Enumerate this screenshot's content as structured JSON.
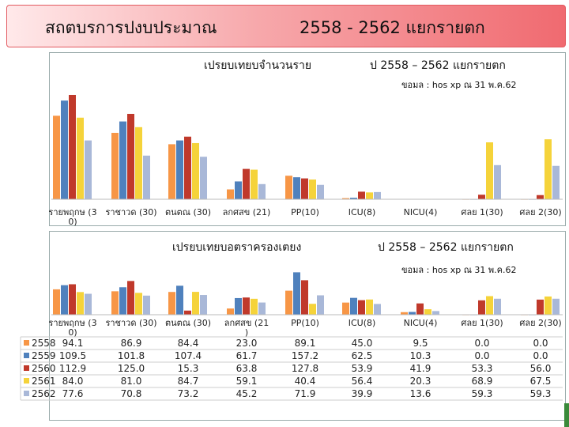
{
  "header": {
    "title_left": "สถตบรการปงบประมาณ",
    "title_right": "2558 - 2562 แยกรายตก"
  },
  "chart1": {
    "title_left": "เปรยบเทยบจำนวนราย",
    "title_right": "ป 2558 – 2562 แยกรายตก",
    "source": "ขอมล : hos xp ณ 31 พ.ค.62"
  },
  "chart2": {
    "title_left": "เปรยบเทยบอตราครองเตยง",
    "title_right": "ป 2558 – 2562 แยกรายตก",
    "source": "ขอมล : hos xp ณ 31 พ.ค.62"
  },
  "colors": {
    "2558": "#f79646",
    "2559": "#4f81bd",
    "2560": "#c0392b",
    "2561": "#f5d33a",
    "2562": "#a9b8d8"
  },
  "chart_data": [
    {
      "type": "bar",
      "categories": [
        "รายพฤกษ (30)",
        "ราชาวด (30)",
        "ตนตณ (30)",
        "ลกศสข (21)",
        "PP(10)",
        "ICU(8)",
        "NICU(4)",
        "ศลย 1(30)",
        "ศลย 2(30)"
      ],
      "category_label_lines": [
        [
          "รายพฤกษ (3",
          "0)"
        ],
        [
          "ราชาวด (30)"
        ],
        [
          "ตนตณ (30)"
        ],
        [
          "ลกศสข (21)"
        ],
        [
          "PP(10)"
        ],
        [
          "ICU(8)"
        ],
        [
          "NICU(4)"
        ],
        [
          "ศลย 1(30)"
        ],
        [
          "ศลย 2(30)"
        ]
      ],
      "series": [
        {
          "name": "2558",
          "values": [
            2200,
            1750,
            1450,
            260,
            620,
            30,
            5,
            0,
            0
          ]
        },
        {
          "name": "2559",
          "values": [
            2600,
            2050,
            1550,
            470,
            580,
            40,
            3,
            0,
            0
          ]
        },
        {
          "name": "2560",
          "values": [
            2750,
            2250,
            1650,
            800,
            550,
            200,
            3,
            120,
            110
          ]
        },
        {
          "name": "2561",
          "values": [
            2150,
            1900,
            1480,
            780,
            520,
            180,
            2,
            1500,
            1580
          ]
        },
        {
          "name": "2562",
          "values": [
            1550,
            1150,
            1120,
            400,
            380,
            190,
            2,
            900,
            880
          ]
        }
      ],
      "ylim": [
        0,
        3000
      ]
    },
    {
      "type": "bar",
      "categories": [
        "รายพฤกษ (30)",
        "ราชาวด (30)",
        "ตนตณ (30)",
        "ลกศสข (21)",
        "PP(10)",
        "ICU(8)",
        "NICU(4)",
        "ศลย 1(30)",
        "ศลย 2(30)"
      ],
      "category_label_lines": [
        [
          "รายพฤกษ (3",
          "0)"
        ],
        [
          "ราชาวด (30)"
        ],
        [
          "ตนตณ (30)"
        ],
        [
          "ลกศสข (21",
          ")"
        ],
        [
          "PP(10)"
        ],
        [
          "ICU(8)"
        ],
        [
          "NICU(4)"
        ],
        [
          "ศลย 1(30)"
        ],
        [
          "ศลย 2(30)"
        ]
      ],
      "series": [
        {
          "name": "2558",
          "values": [
            94.1,
            86.9,
            84.4,
            23.0,
            89.1,
            45.0,
            9.5,
            0.0,
            0.0
          ]
        },
        {
          "name": "2559",
          "values": [
            109.5,
            101.8,
            107.4,
            61.7,
            157.2,
            62.5,
            10.3,
            0.0,
            0.0
          ]
        },
        {
          "name": "2560",
          "values": [
            112.9,
            125.0,
            15.3,
            63.8,
            127.8,
            53.9,
            41.9,
            53.3,
            56.0
          ]
        },
        {
          "name": "2561",
          "values": [
            84.0,
            81.0,
            84.7,
            59.1,
            40.4,
            56.4,
            20.3,
            68.9,
            67.5
          ]
        },
        {
          "name": "2562",
          "values": [
            77.6,
            70.8,
            73.2,
            45.2,
            71.9,
            39.9,
            13.6,
            59.3,
            59.3
          ]
        }
      ],
      "table": {
        "rows": [
          {
            "label": "2558",
            "values": [
              "94.1",
              "86.9",
              "84.4",
              "23.0",
              "89.1",
              "45.0",
              "9.5",
              "0.0",
              "0.0"
            ]
          },
          {
            "label": "2559",
            "values": [
              "109.5",
              "101.8",
              "107.4",
              "61.7",
              "157.2",
              "62.5",
              "10.3",
              "0.0",
              "0.0"
            ]
          },
          {
            "label": "2560",
            "values": [
              "112.9",
              "125.0",
              "15.3",
              "63.8",
              "127.8",
              "53.9",
              "41.9",
              "53.3",
              "56.0"
            ]
          },
          {
            "label": "2561",
            "values": [
              "84.0",
              "81.0",
              "84.7",
              "59.1",
              "40.4",
              "56.4",
              "20.3",
              "68.9",
              "67.5"
            ]
          },
          {
            "label": "2562",
            "values": [
              "77.6",
              "70.8",
              "73.2",
              "45.2",
              "71.9",
              "39.9",
              "13.6",
              "59.3",
              "59.3"
            ]
          }
        ]
      },
      "ylim": [
        0,
        170
      ]
    }
  ]
}
